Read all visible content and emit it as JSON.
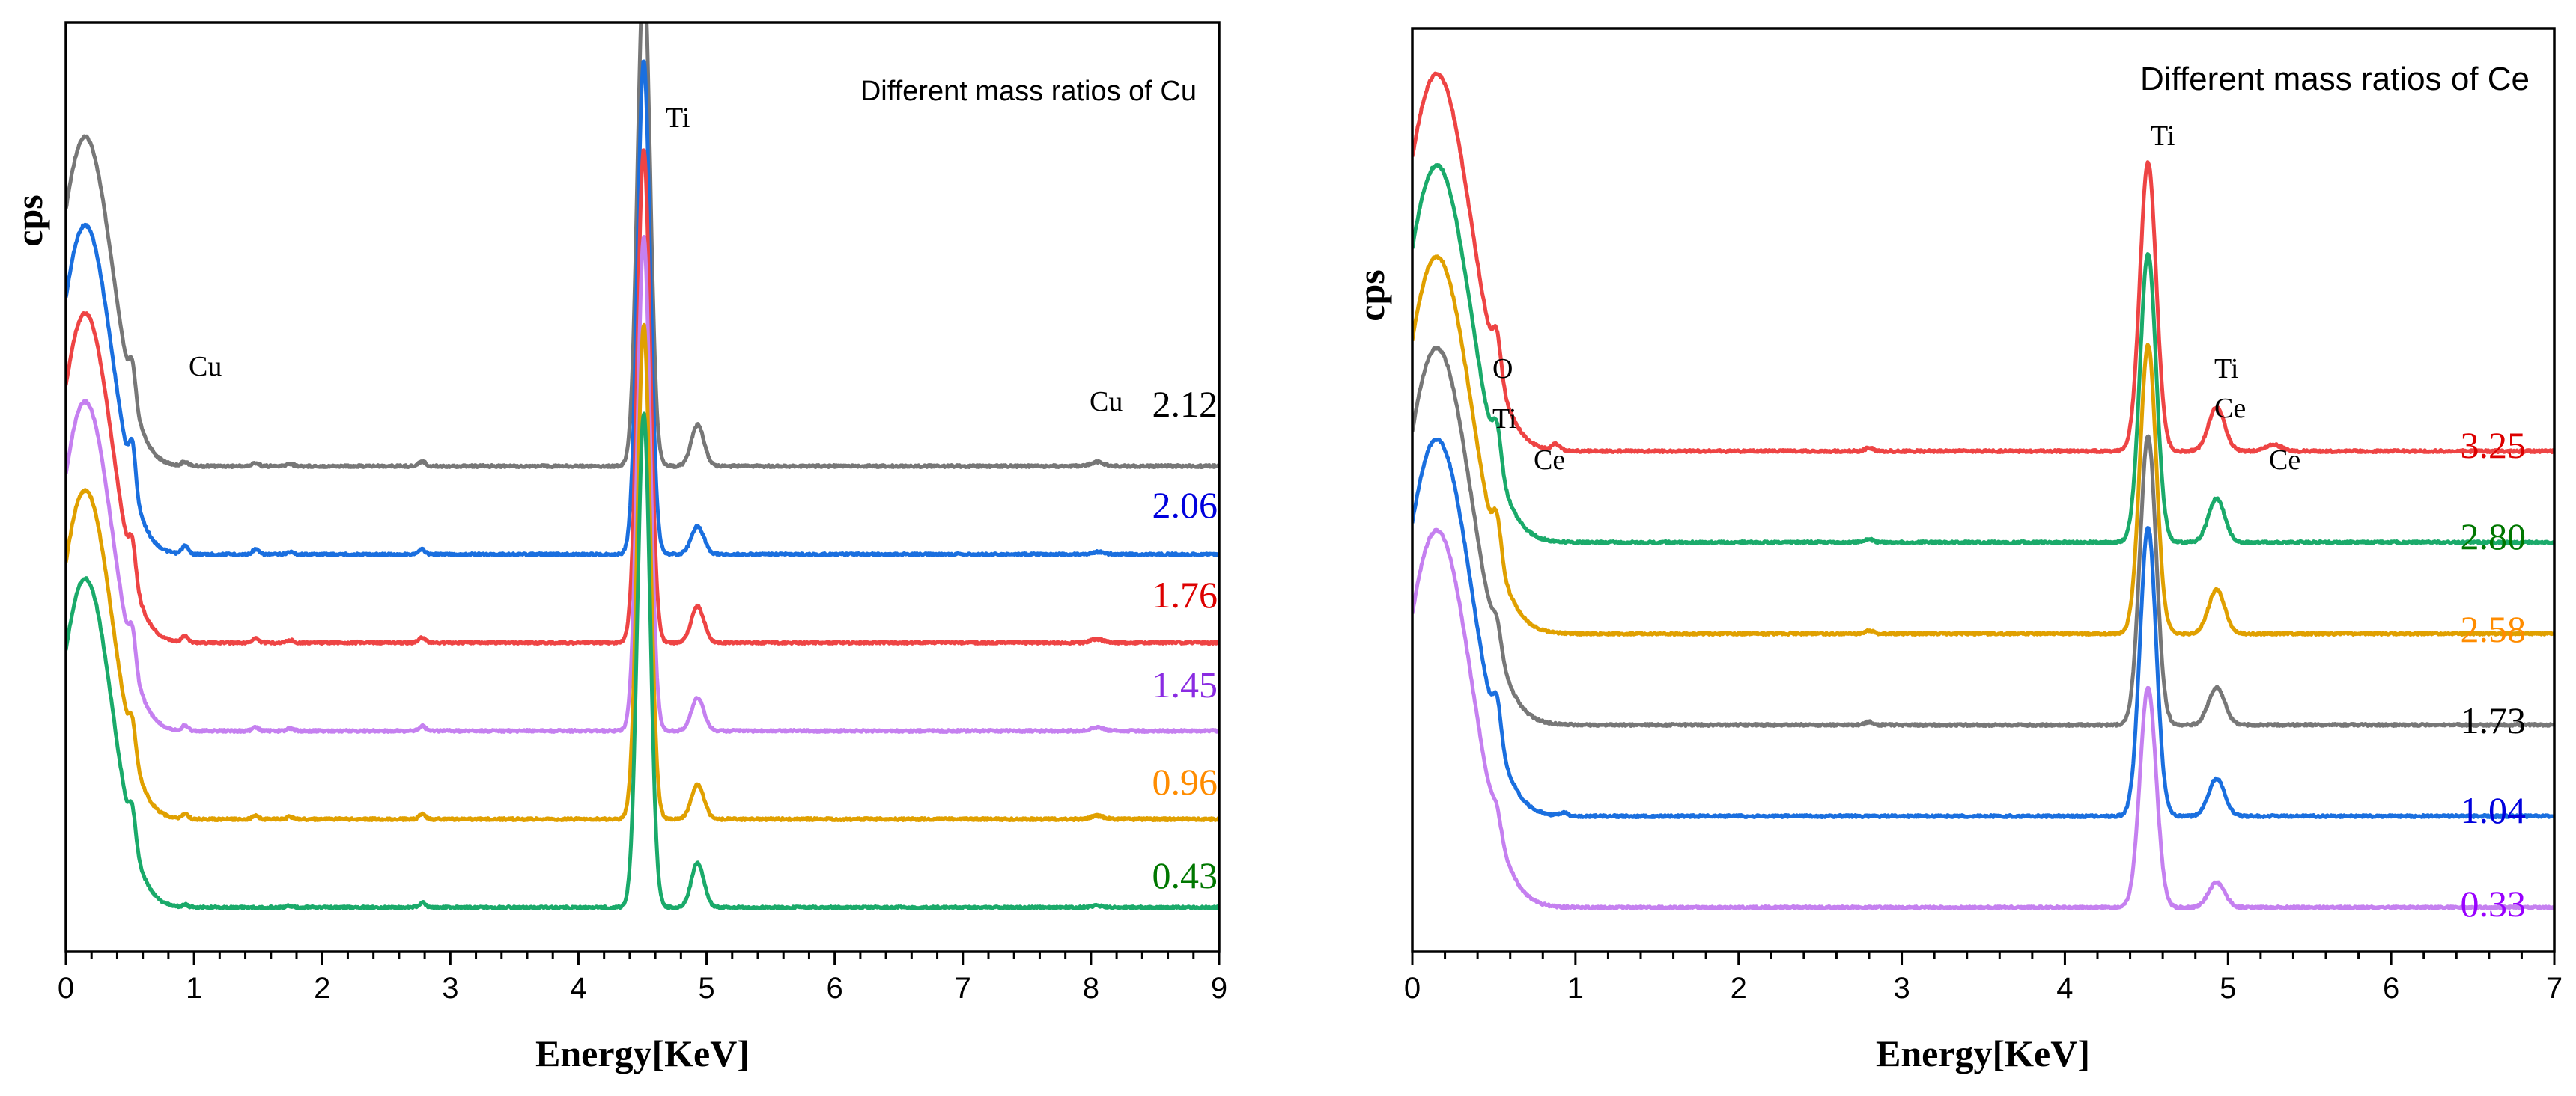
{
  "chart_data": [
    {
      "type": "line",
      "title": "Different mass ratios of Cu",
      "xlabel": "Energy[KeV]",
      "ylabel": "cps",
      "xlim": [
        0,
        9
      ],
      "xticks": [
        "0",
        "1",
        "2",
        "3",
        "4",
        "5",
        "6",
        "7",
        "8",
        "9"
      ],
      "peak_labels": [
        {
          "text": "Ti",
          "energy": 4.7
        },
        {
          "text": "Cu",
          "energy": 1.0
        },
        {
          "text": "Cu",
          "energy": 7.9
        }
      ],
      "series": [
        {
          "name": "2.12",
          "color": "#777777",
          "offset": 5,
          "peaks": [
            [
              0.52,
              2.0
            ],
            [
              0.93,
              0.25
            ],
            [
              1.48,
              0.2
            ],
            [
              1.75,
              0.15
            ],
            [
              2.78,
              0.3
            ],
            [
              4.51,
              30
            ],
            [
              4.93,
              2.5
            ],
            [
              8.05,
              0.25
            ]
          ]
        },
        {
          "name": "2.06",
          "color": "#1a6fdf",
          "offset": 4,
          "peaks": [
            [
              0.52,
              2.5
            ],
            [
              0.93,
              0.5
            ],
            [
              1.48,
              0.3
            ],
            [
              1.75,
              0.15
            ],
            [
              2.78,
              0.3
            ],
            [
              4.51,
              30
            ],
            [
              4.93,
              1.7
            ],
            [
              8.05,
              0.15
            ]
          ]
        },
        {
          "name": "1.76",
          "color": "#ee4444",
          "offset": 3,
          "peaks": [
            [
              0.52,
              2.0
            ],
            [
              0.93,
              0.4
            ],
            [
              1.48,
              0.25
            ],
            [
              1.75,
              0.15
            ],
            [
              2.78,
              0.3
            ],
            [
              4.51,
              30
            ],
            [
              4.93,
              2.2
            ],
            [
              8.05,
              0.2
            ]
          ]
        },
        {
          "name": "1.45",
          "color": "#c580f0",
          "offset": 2,
          "peaks": [
            [
              0.52,
              2.0
            ],
            [
              0.93,
              0.3
            ],
            [
              1.48,
              0.2
            ],
            [
              1.75,
              0.15
            ],
            [
              2.78,
              0.3
            ],
            [
              4.51,
              30
            ],
            [
              4.93,
              2.0
            ],
            [
              8.05,
              0.2
            ]
          ]
        },
        {
          "name": "0.96",
          "color": "#e0a000",
          "offset": 1,
          "peaks": [
            [
              0.52,
              1.8
            ],
            [
              0.93,
              0.3
            ],
            [
              1.48,
              0.2
            ],
            [
              1.75,
              0.15
            ],
            [
              2.78,
              0.3
            ],
            [
              4.51,
              30
            ],
            [
              4.93,
              2.1
            ],
            [
              8.05,
              0.2
            ]
          ]
        },
        {
          "name": "0.43",
          "color": "#1aaa6a",
          "offset": 0,
          "peaks": [
            [
              0.52,
              1.8
            ],
            [
              0.93,
              0.15
            ],
            [
              1.75,
              0.1
            ],
            [
              2.78,
              0.3
            ],
            [
              4.51,
              30
            ],
            [
              4.93,
              2.7
            ],
            [
              8.05,
              0.1
            ]
          ]
        }
      ],
      "label_colors": [
        "#000000",
        "#0000dd",
        "#dd0000",
        "#8a2be2",
        "#ff8c00",
        "#007700"
      ]
    },
    {
      "type": "line",
      "title": "Different mass ratios of Ce",
      "xlabel": "Energy[KeV]",
      "ylabel": "cps",
      "xlim": [
        0,
        7
      ],
      "xticks": [
        "0",
        "1",
        "2",
        "3",
        "4",
        "5",
        "6",
        "7"
      ],
      "peak_labels": [
        {
          "text": "O",
          "energy": 0.52
        },
        {
          "text": "Ti",
          "energy": 0.52
        },
        {
          "text": "Ce",
          "energy": 0.78
        },
        {
          "text": "Ti",
          "energy": 4.55
        },
        {
          "text": "Ti",
          "energy": 4.93
        },
        {
          "text": "Ce",
          "energy": 4.93
        },
        {
          "text": "Ce",
          "energy": 5.3
        }
      ],
      "series": [
        {
          "name": "3.25",
          "color": "#ee4444",
          "offset": 5,
          "peaks": [
            [
              0.52,
              0.6
            ],
            [
              0.88,
              0.1
            ],
            [
              2.8,
              0.05
            ],
            [
              4.51,
              4.6
            ],
            [
              4.93,
              0.7
            ],
            [
              5.28,
              0.1
            ]
          ]
        },
        {
          "name": "2.80",
          "color": "#1aaa6a",
          "offset": 4,
          "peaks": [
            [
              0.52,
              0.6
            ],
            [
              2.8,
              0.05
            ],
            [
              4.51,
              4.6
            ],
            [
              4.93,
              0.7
            ]
          ]
        },
        {
          "name": "2.58",
          "color": "#e0a000",
          "offset": 3,
          "peaks": [
            [
              0.52,
              0.6
            ],
            [
              2.8,
              0.05
            ],
            [
              4.51,
              4.6
            ],
            [
              4.93,
              0.7
            ]
          ]
        },
        {
          "name": "1.73",
          "color": "#777777",
          "offset": 2,
          "peaks": [
            [
              0.52,
              0.4
            ],
            [
              2.8,
              0.05
            ],
            [
              4.51,
              4.6
            ],
            [
              4.93,
              0.6
            ]
          ]
        },
        {
          "name": "1.04",
          "color": "#1a6fdf",
          "offset": 1,
          "peaks": [
            [
              0.52,
              0.6
            ],
            [
              0.93,
              0.05
            ],
            [
              4.51,
              4.6
            ],
            [
              4.93,
              0.6
            ]
          ]
        },
        {
          "name": "0.33",
          "color": "#c580f0",
          "offset": 0,
          "peaks": [
            [
              0.52,
              0.3
            ],
            [
              4.51,
              3.5
            ],
            [
              4.93,
              0.4
            ]
          ]
        }
      ],
      "label_colors": [
        "#dd0000",
        "#007700",
        "#ff8c00",
        "#000000",
        "#0000dd",
        "#9900ff"
      ]
    }
  ]
}
